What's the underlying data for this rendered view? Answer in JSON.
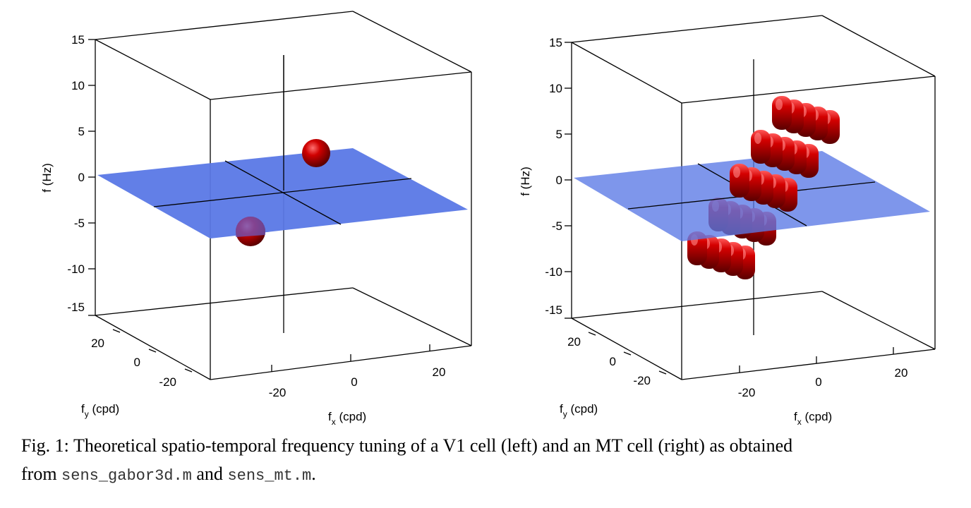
{
  "chart_data": [
    {
      "type": "scatter",
      "subtype": "3d-surface",
      "panel": "left",
      "zlabel": "f",
      "zlabel_unit": "(Hz)",
      "xlabel": "f",
      "xlabel_sub": "x",
      "xlabel_unit": "(cpd)",
      "ylabel": "f",
      "ylabel_sub": "y",
      "ylabel_unit": "(cpd)",
      "z_ticks": [
        "15",
        "10",
        "5",
        "0",
        "-5",
        "-10",
        "-15"
      ],
      "x_ticks": [
        "-20",
        "0",
        "20"
      ],
      "y_ticks": [
        "20",
        "0",
        "-20"
      ],
      "zlim": [
        -15,
        15
      ],
      "plane": {
        "z": 0,
        "color": "#5a78e6"
      },
      "surface_color": "#c80000",
      "blobs": [
        {
          "fx": 12,
          "fy": -12,
          "ft": 5
        },
        {
          "fx": -12,
          "fy": 12,
          "ft": -5
        }
      ]
    },
    {
      "type": "scatter",
      "subtype": "3d-surface",
      "panel": "right",
      "zlabel": "f",
      "zlabel_unit": "(Hz)",
      "xlabel": "f",
      "xlabel_sub": "x",
      "xlabel_unit": "(cpd)",
      "ylabel": "f",
      "ylabel_sub": "y",
      "ylabel_unit": "(cpd)",
      "z_ticks": [
        "15",
        "10",
        "5",
        "0",
        "-5",
        "-10",
        "-15"
      ],
      "x_ticks": [
        "-20",
        "0",
        "20"
      ],
      "y_ticks": [
        "20",
        "0",
        "-20"
      ],
      "zlim": [
        -15,
        15
      ],
      "plane": {
        "z": 0,
        "color": "#5a78e6"
      },
      "surface_color": "#c80000",
      "blob_rows": 5,
      "blob_cols": 5
    }
  ],
  "caption": {
    "line1": "Fig. 1: Theoretical spatio-temporal frequency tuning of a V1 cell (left) and an MT cell (right) as obtained",
    "line2_prefix": "from ",
    "file1": "sens_gabor3d.m",
    "and": " and ",
    "file2": "sens_mt.m",
    "end": "."
  }
}
